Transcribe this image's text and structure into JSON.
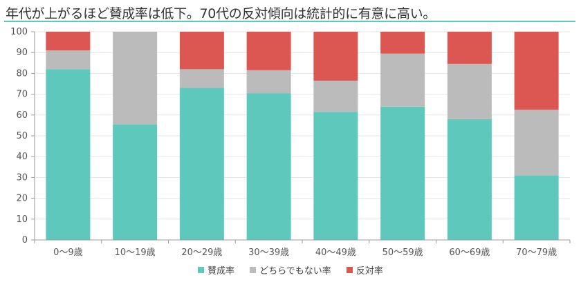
{
  "header": {
    "title": "年代が上がるほど賛成率は低下。70代の反対傾向は統計的に有意に高い。"
  },
  "chart_data": {
    "type": "bar",
    "stacked": true,
    "categories": [
      "0～9歳",
      "10～19歳",
      "20～29歳",
      "30～39歳",
      "40～49歳",
      "50～59歳",
      "60～69歳",
      "70～79歳"
    ],
    "series": [
      {
        "name": "賛成率",
        "color": "#5ec8bd",
        "values": [
          82,
          55.5,
          73,
          70.5,
          61.5,
          64,
          58,
          31
        ]
      },
      {
        "name": "どちらでもない率",
        "color": "#bbbbbb",
        "values": [
          9,
          44.5,
          9,
          11,
          15,
          25.5,
          26.5,
          31.5
        ]
      },
      {
        "name": "反対率",
        "color": "#dc5751",
        "values": [
          9,
          0,
          18,
          18.5,
          23.5,
          10.5,
          15.5,
          37.5
        ]
      }
    ],
    "ylim": [
      0,
      100
    ],
    "yticks": [
      0,
      10,
      20,
      30,
      40,
      50,
      60,
      70,
      80,
      90,
      100
    ],
    "grid": true,
    "legend_position": "bottom"
  }
}
